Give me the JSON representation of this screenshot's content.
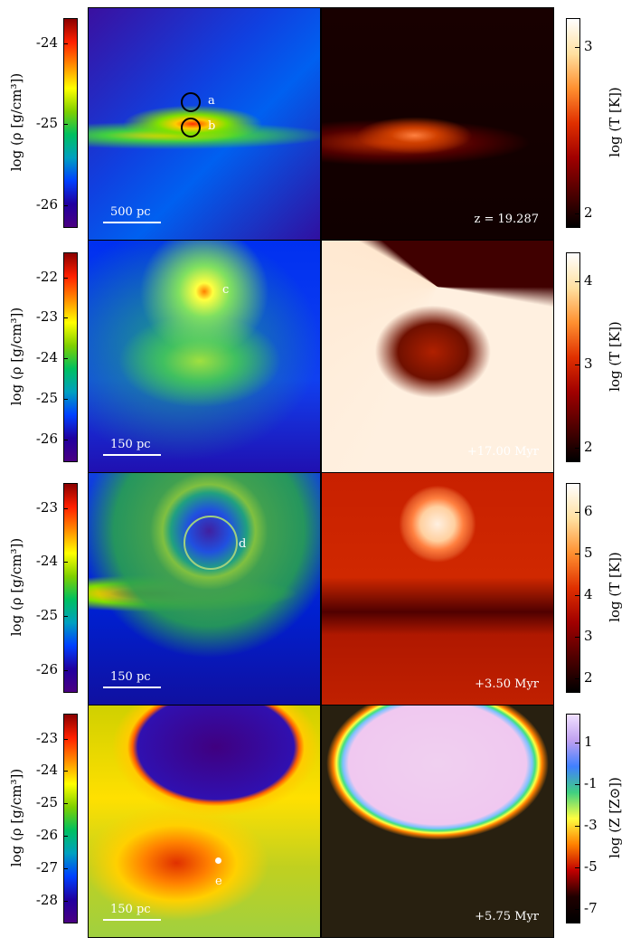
{
  "rows": [
    {
      "left_label": "log (ρ [g/cm³])",
      "left_ticks": [
        "-24",
        "-25",
        "-26"
      ],
      "right_label": "log (T [K])",
      "right_ticks": [
        "3",
        "2"
      ],
      "scale": "500 pc",
      "info": "z = 19.287",
      "markers": [
        "a",
        "b"
      ],
      "left_cmap": "density",
      "right_cmap": "temp"
    },
    {
      "left_label": "log (ρ [g/cm³])",
      "left_ticks": [
        "-22",
        "-23",
        "-24",
        "-25",
        "-26"
      ],
      "right_label": "log (T [K])",
      "right_ticks": [
        "4",
        "3",
        "2"
      ],
      "scale": "150 pc",
      "info": "+17.00 Myr",
      "markers": [
        "c"
      ],
      "left_cmap": "density",
      "right_cmap": "temp"
    },
    {
      "left_label": "log (ρ [g/cm³])",
      "left_ticks": [
        "-23",
        "-24",
        "-25",
        "-26"
      ],
      "right_label": "log (T [K])",
      "right_ticks": [
        "6",
        "5",
        "4",
        "3",
        "2"
      ],
      "scale": "150 pc",
      "info": "+3.50 Myr",
      "markers": [
        "d"
      ],
      "left_cmap": "density",
      "right_cmap": "temp"
    },
    {
      "left_label": "log (ρ [g/cm³])",
      "left_ticks": [
        "-23",
        "-24",
        "-25",
        "-26",
        "-27",
        "-28"
      ],
      "right_label": "log (Z [Z⊙])",
      "right_ticks": [
        "1",
        "-1",
        "-3",
        "-5",
        "-7"
      ],
      "scale": "150 pc",
      "info": "+5.75 Myr",
      "markers": [
        "e"
      ],
      "left_cmap": "density",
      "right_cmap": "metal"
    }
  ],
  "colors": {
    "density": [
      "#8b0000",
      "#ff2000",
      "#ff8c00",
      "#ffff00",
      "#7fd000",
      "#00c060",
      "#00a0c0",
      "#0040ff",
      "#2000a0",
      "#4b0082"
    ],
    "temp": [
      "#ffffff",
      "#ffe0a0",
      "#ff9030",
      "#e03000",
      "#a00000",
      "#500000",
      "#000000"
    ],
    "metal": [
      "#f0e0ff",
      "#c0a0f0",
      "#4080ff",
      "#40d080",
      "#ffff40",
      "#ff8000",
      "#c00000",
      "#200000",
      "#000000"
    ]
  }
}
